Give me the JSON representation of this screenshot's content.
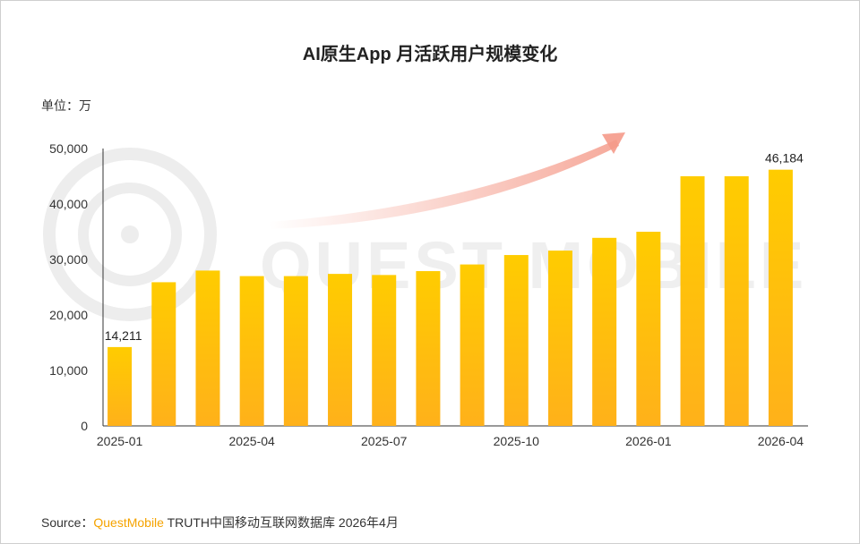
{
  "chart_data": {
    "type": "bar",
    "title": "AI原生App 月活跃用户规模变化",
    "unit_label": "单位：万",
    "categories": [
      "2025-01",
      "2025-02",
      "2025-03",
      "2025-04",
      "2025-05",
      "2025-06",
      "2025-07",
      "2025-08",
      "2025-09",
      "2025-10",
      "2025-11",
      "2025-12",
      "2026-01",
      "2026-02",
      "2026-03",
      "2026-04"
    ],
    "x_tick_labels": [
      "2025-01",
      "",
      "",
      "2025-04",
      "",
      "",
      "2025-07",
      "",
      "",
      "2025-10",
      "",
      "",
      "2026-01",
      "",
      "",
      "2026-04"
    ],
    "values": [
      14211,
      25900,
      28000,
      27000,
      27000,
      27400,
      27200,
      27900,
      29100,
      30800,
      31600,
      33900,
      35000,
      45000,
      45000,
      46184
    ],
    "data_labels": [
      "14,211",
      "",
      "",
      "",
      "",
      "",
      "",
      "",
      "",
      "",
      "",
      "",
      "",
      "",
      "",
      "46,184"
    ],
    "ylim": [
      0,
      50000
    ],
    "y_ticks": [
      0,
      10000,
      20000,
      30000,
      40000,
      50000
    ],
    "y_tick_labels": [
      "0",
      "10,000",
      "20,000",
      "30,000",
      "40,000",
      "50,000"
    ],
    "grid": false,
    "legend": "none",
    "colors": {
      "bar_top": "#ffcc00",
      "bar_bottom": "#ffb11a",
      "arrow": "#f5a090",
      "watermark": "#ececec"
    }
  },
  "watermark": {
    "text": "QUEST MOBILE"
  },
  "source": {
    "prefix": "Source：",
    "brand": "QuestMobile",
    "rest": " TRUTH中国移动互联网数据库 2026年4月"
  }
}
